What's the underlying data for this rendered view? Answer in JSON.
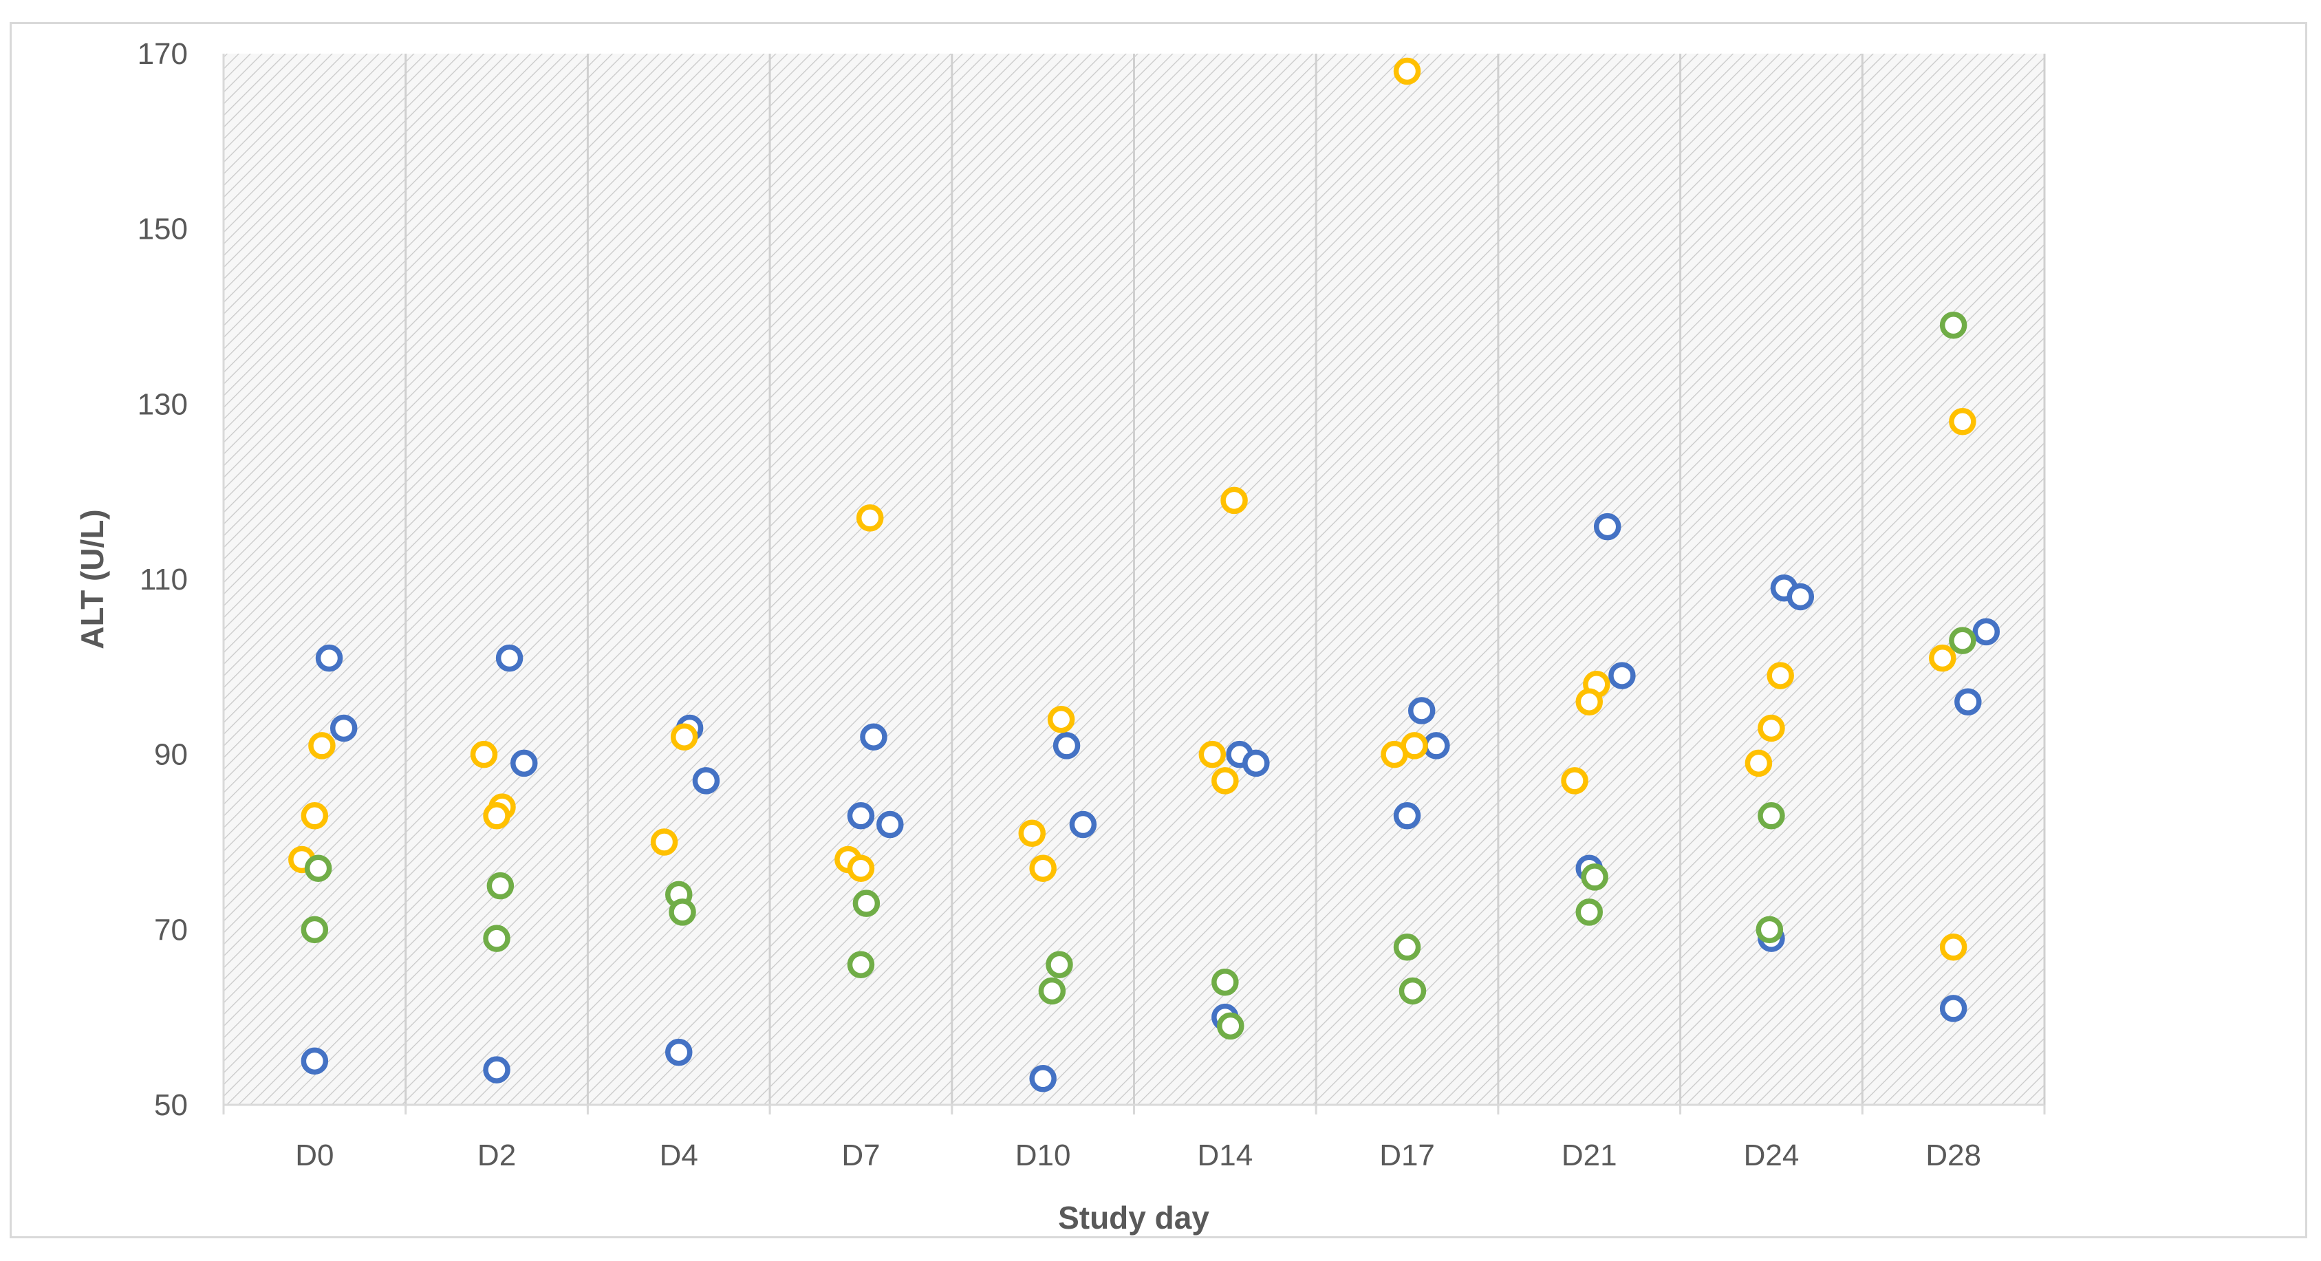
{
  "chart_data": {
    "type": "scatter",
    "title": "",
    "xlabel": "Study day",
    "ylabel": "ALT (U/L)",
    "ylim": [
      50,
      170
    ],
    "yticks": [
      50,
      70,
      90,
      110,
      130,
      150,
      170
    ],
    "categories": [
      "D0",
      "D2",
      "D4",
      "D7",
      "D10",
      "D14",
      "D17",
      "D21",
      "D24",
      "D28"
    ],
    "grid": "vertical category separators, hatched plot background",
    "legend": "none",
    "series": [
      {
        "name": "Blue",
        "color": "#4472C4",
        "points": [
          {
            "category": "D0",
            "offset": 0.08,
            "value": 101
          },
          {
            "category": "D0",
            "offset": 0.16,
            "value": 93
          },
          {
            "category": "D0",
            "offset": 0.0,
            "value": 55
          },
          {
            "category": "D2",
            "offset": 0.07,
            "value": 101
          },
          {
            "category": "D2",
            "offset": 0.15,
            "value": 89
          },
          {
            "category": "D2",
            "offset": 0.0,
            "value": 54
          },
          {
            "category": "D4",
            "offset": 0.06,
            "value": 93
          },
          {
            "category": "D4",
            "offset": 0.15,
            "value": 87
          },
          {
            "category": "D4",
            "offset": 0.0,
            "value": 56
          },
          {
            "category": "D7",
            "offset": 0.07,
            "value": 92
          },
          {
            "category": "D7",
            "offset": 0.0,
            "value": 83
          },
          {
            "category": "D7",
            "offset": 0.16,
            "value": 82
          },
          {
            "category": "D10",
            "offset": 0.13,
            "value": 91
          },
          {
            "category": "D10",
            "offset": 0.22,
            "value": 82
          },
          {
            "category": "D10",
            "offset": 0.0,
            "value": 53
          },
          {
            "category": "D14",
            "offset": 0.08,
            "value": 90
          },
          {
            "category": "D14",
            "offset": 0.17,
            "value": 89
          },
          {
            "category": "D14",
            "offset": 0.0,
            "value": 60
          },
          {
            "category": "D17",
            "offset": 0.08,
            "value": 95
          },
          {
            "category": "D17",
            "offset": 0.16,
            "value": 91
          },
          {
            "category": "D17",
            "offset": 0.0,
            "value": 83
          },
          {
            "category": "D21",
            "offset": 0.1,
            "value": 116
          },
          {
            "category": "D21",
            "offset": 0.18,
            "value": 99
          },
          {
            "category": "D21",
            "offset": 0.0,
            "value": 77
          },
          {
            "category": "D24",
            "offset": 0.07,
            "value": 109
          },
          {
            "category": "D24",
            "offset": 0.16,
            "value": 108
          },
          {
            "category": "D24",
            "offset": 0.0,
            "value": 69
          },
          {
            "category": "D28",
            "offset": 0.18,
            "value": 104
          },
          {
            "category": "D28",
            "offset": 0.08,
            "value": 96
          },
          {
            "category": "D28",
            "offset": 0.0,
            "value": 61
          }
        ]
      },
      {
        "name": "Orange",
        "color": "#FFC000",
        "points": [
          {
            "category": "D0",
            "offset": 0.04,
            "value": 91
          },
          {
            "category": "D0",
            "offset": 0.0,
            "value": 83
          },
          {
            "category": "D0",
            "offset": -0.07,
            "value": 78
          },
          {
            "category": "D2",
            "offset": -0.07,
            "value": 90
          },
          {
            "category": "D2",
            "offset": 0.03,
            "value": 84
          },
          {
            "category": "D2",
            "offset": 0.0,
            "value": 83
          },
          {
            "category": "D4",
            "offset": 0.03,
            "value": 92
          },
          {
            "category": "D4",
            "offset": -0.08,
            "value": 80
          },
          {
            "category": "D7",
            "offset": 0.05,
            "value": 117
          },
          {
            "category": "D7",
            "offset": -0.07,
            "value": 78
          },
          {
            "category": "D7",
            "offset": 0.0,
            "value": 77
          },
          {
            "category": "D10",
            "offset": 0.1,
            "value": 94
          },
          {
            "category": "D10",
            "offset": -0.06,
            "value": 81
          },
          {
            "category": "D10",
            "offset": 0.0,
            "value": 77
          },
          {
            "category": "D14",
            "offset": 0.05,
            "value": 119
          },
          {
            "category": "D14",
            "offset": -0.07,
            "value": 90
          },
          {
            "category": "D14",
            "offset": 0.0,
            "value": 87
          },
          {
            "category": "D17",
            "offset": 0.0,
            "value": 168
          },
          {
            "category": "D17",
            "offset": 0.04,
            "value": 91
          },
          {
            "category": "D17",
            "offset": -0.07,
            "value": 90
          },
          {
            "category": "D21",
            "offset": 0.04,
            "value": 98
          },
          {
            "category": "D21",
            "offset": 0.0,
            "value": 96
          },
          {
            "category": "D21",
            "offset": -0.08,
            "value": 87
          },
          {
            "category": "D24",
            "offset": 0.05,
            "value": 99
          },
          {
            "category": "D24",
            "offset": 0.0,
            "value": 93
          },
          {
            "category": "D24",
            "offset": -0.07,
            "value": 89
          },
          {
            "category": "D28",
            "offset": 0.05,
            "value": 128
          },
          {
            "category": "D28",
            "offset": -0.06,
            "value": 101
          },
          {
            "category": "D28",
            "offset": 0.0,
            "value": 68
          }
        ]
      },
      {
        "name": "Green",
        "color": "#70AD47",
        "points": [
          {
            "category": "D0",
            "offset": 0.02,
            "value": 77
          },
          {
            "category": "D0",
            "offset": 0.0,
            "value": 70
          },
          {
            "category": "D2",
            "offset": 0.02,
            "value": 75
          },
          {
            "category": "D2",
            "offset": 0.0,
            "value": 69
          },
          {
            "category": "D4",
            "offset": 0.0,
            "value": 74
          },
          {
            "category": "D4",
            "offset": 0.02,
            "value": 72
          },
          {
            "category": "D7",
            "offset": 0.03,
            "value": 73
          },
          {
            "category": "D7",
            "offset": 0.0,
            "value": 66
          },
          {
            "category": "D10",
            "offset": 0.09,
            "value": 66
          },
          {
            "category": "D10",
            "offset": 0.05,
            "value": 63
          },
          {
            "category": "D14",
            "offset": 0.0,
            "value": 64
          },
          {
            "category": "D14",
            "offset": 0.03,
            "value": 59
          },
          {
            "category": "D17",
            "offset": 0.0,
            "value": 68
          },
          {
            "category": "D17",
            "offset": 0.03,
            "value": 63
          },
          {
            "category": "D21",
            "offset": 0.03,
            "value": 76
          },
          {
            "category": "D21",
            "offset": 0.0,
            "value": 72
          },
          {
            "category": "D24",
            "offset": 0.0,
            "value": 83
          },
          {
            "category": "D24",
            "offset": -0.01,
            "value": 70
          },
          {
            "category": "D28",
            "offset": 0.0,
            "value": 139
          },
          {
            "category": "D28",
            "offset": 0.05,
            "value": 103
          }
        ]
      }
    ]
  }
}
